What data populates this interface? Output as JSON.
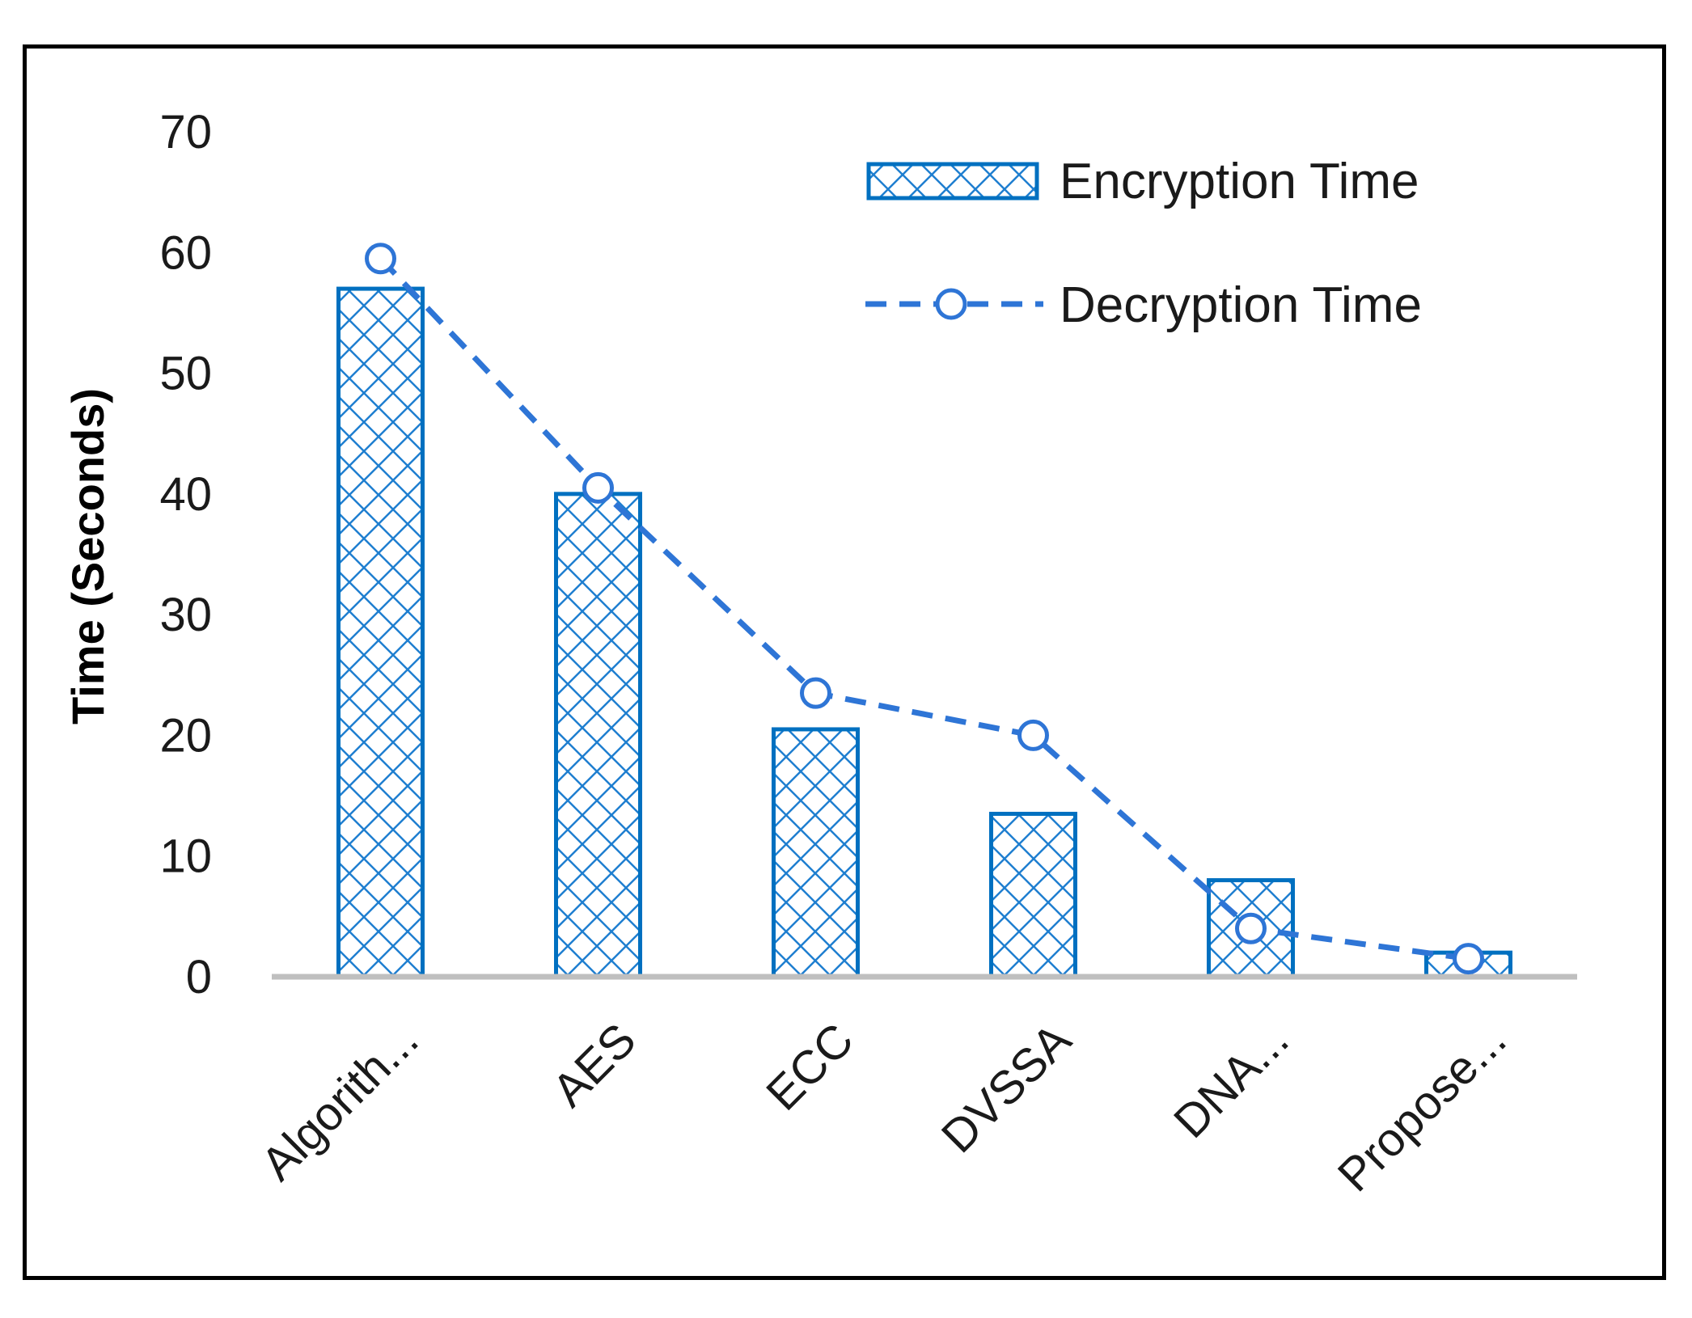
{
  "chart_data": {
    "type": "bar",
    "categories": [
      "Algorith...",
      "AES",
      "ECC",
      "DVSSA",
      "DNA...",
      "Propose..."
    ],
    "series": [
      {
        "name": "Encryption Time",
        "type": "bar",
        "values": [
          57,
          40,
          20.5,
          13.5,
          8,
          2
        ],
        "color": "#0070C0",
        "pattern": "crosshatch"
      },
      {
        "name": "Decryption Time",
        "type": "line",
        "values": [
          59.5,
          40.5,
          23.5,
          20,
          4,
          1.5
        ],
        "color": "#2E75D6",
        "line_style": "dashed",
        "marker": "hollow-circle"
      }
    ],
    "title": "",
    "xlabel": "",
    "ylabel": "Time (Seconds)",
    "ylim": [
      0,
      70
    ],
    "yticks": [
      "0",
      "10",
      "20",
      "30",
      "40",
      "50",
      "60",
      "70"
    ],
    "grid": false,
    "legend_position": "top-right"
  }
}
